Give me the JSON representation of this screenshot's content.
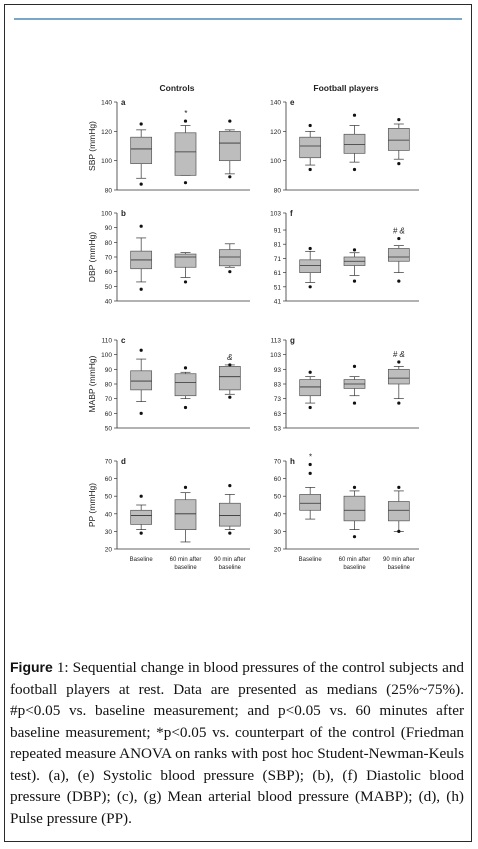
{
  "figure": {
    "column_titles": [
      "Controls",
      "Football players"
    ],
    "caption": {
      "label": "Figure",
      "number": "1:",
      "text": "Sequential change in blood pressures of the control subjects and football players at rest. Data are presented as medians (25%~75%). #p<0.05 vs. baseline measurement; and p<0.05 vs. 60 minutes after baseline measurement; *p<0.05 vs. counterpart of the control (Friedman repeated measure ANOVA on ranks with post hoc Student-Newman-Keuls test). (a), (e) Systolic blood pressure (SBP); (b), (f) Diastolic blood pressure (DBP); (c), (g) Mean arterial blood pressure (MABP); (d), (h) Pulse pressure (PP)."
    }
  },
  "chart_data": [
    {
      "type": "box",
      "panel": "a",
      "column": "Controls",
      "ylabel": "SBP (mmHg)",
      "ylim": [
        80,
        140
      ],
      "yticks": [
        80,
        100,
        120,
        140
      ],
      "categories": [
        "Baseline",
        "60 min after baseline",
        "90 min after baseline"
      ],
      "boxes": [
        {
          "whisker_low": 88,
          "q1": 98,
          "median": 108,
          "q3": 116,
          "whisker_high": 121,
          "outliers": [
            125,
            84
          ],
          "annotation": ""
        },
        {
          "whisker_low": 90,
          "q1": 90,
          "median": 106,
          "q3": 119,
          "whisker_high": 124,
          "outliers": [
            127,
            85
          ],
          "annotation": "*"
        },
        {
          "whisker_low": 91,
          "q1": 100,
          "median": 112,
          "q3": 120,
          "whisker_high": 121,
          "outliers": [
            127,
            89
          ],
          "annotation": ""
        }
      ]
    },
    {
      "type": "box",
      "panel": "b",
      "column": "Controls",
      "ylabel": "DBP (mmHg)",
      "ylim": [
        40,
        100
      ],
      "yticks": [
        40,
        50,
        60,
        70,
        80,
        90,
        100
      ],
      "categories": [
        "Baseline",
        "60 min after baseline",
        "90 min after baseline"
      ],
      "boxes": [
        {
          "whisker_low": 53,
          "q1": 62,
          "median": 68,
          "q3": 74,
          "whisker_high": 83,
          "outliers": [
            91,
            48
          ],
          "annotation": ""
        },
        {
          "whisker_low": 56,
          "q1": 63,
          "median": 70,
          "q3": 72,
          "whisker_high": 73,
          "outliers": [
            53
          ],
          "annotation": ""
        },
        {
          "whisker_low": 63,
          "q1": 64,
          "median": 70,
          "q3": 75,
          "whisker_high": 79,
          "outliers": [
            60
          ],
          "annotation": ""
        }
      ]
    },
    {
      "type": "box",
      "panel": "c",
      "column": "Controls",
      "ylabel": "MABP (mmHg)",
      "ylim": [
        50,
        110
      ],
      "yticks": [
        50,
        60,
        70,
        80,
        90,
        100,
        110
      ],
      "categories": [
        "Baseline",
        "60 min after baseline",
        "90 min after baseline"
      ],
      "boxes": [
        {
          "whisker_low": 68,
          "q1": 76,
          "median": 82,
          "q3": 89,
          "whisker_high": 97,
          "outliers": [
            103,
            60
          ],
          "annotation": ""
        },
        {
          "whisker_low": 70,
          "q1": 72,
          "median": 81,
          "q3": 87,
          "whisker_high": 88,
          "outliers": [
            91,
            64
          ],
          "annotation": ""
        },
        {
          "whisker_low": 73,
          "q1": 76,
          "median": 85,
          "q3": 92,
          "whisker_high": 93,
          "outliers": [
            93,
            71
          ],
          "annotation": "&"
        }
      ]
    },
    {
      "type": "box",
      "panel": "d",
      "column": "Controls",
      "ylabel": "PP (mmHg)",
      "ylim": [
        20,
        70
      ],
      "yticks": [
        20,
        30,
        40,
        50,
        60,
        70
      ],
      "categories": [
        "Baseline",
        "60 min after baseline",
        "90 min after baseline"
      ],
      "boxes": [
        {
          "whisker_low": 31,
          "q1": 34,
          "median": 39,
          "q3": 42,
          "whisker_high": 45,
          "outliers": [
            50,
            29
          ],
          "annotation": ""
        },
        {
          "whisker_low": 24,
          "q1": 31,
          "median": 40,
          "q3": 48,
          "whisker_high": 52,
          "outliers": [
            55
          ],
          "annotation": ""
        },
        {
          "whisker_low": 31,
          "q1": 33,
          "median": 39,
          "q3": 46,
          "whisker_high": 51,
          "outliers": [
            56,
            29
          ],
          "annotation": ""
        }
      ]
    },
    {
      "type": "box",
      "panel": "e",
      "column": "Football players",
      "ylabel": "",
      "ylim": [
        80,
        140
      ],
      "yticks": [
        80,
        100,
        120,
        140
      ],
      "categories": [
        "Baseline",
        "60 min after baseline",
        "90 min after baseline"
      ],
      "boxes": [
        {
          "whisker_low": 97,
          "q1": 102,
          "median": 110,
          "q3": 116,
          "whisker_high": 120,
          "outliers": [
            124,
            94
          ],
          "annotation": ""
        },
        {
          "whisker_low": 99,
          "q1": 105,
          "median": 111,
          "q3": 118,
          "whisker_high": 124,
          "outliers": [
            131,
            94
          ],
          "annotation": ""
        },
        {
          "whisker_low": 101,
          "q1": 107,
          "median": 114,
          "q3": 122,
          "whisker_high": 125,
          "outliers": [
            128,
            98
          ],
          "annotation": ""
        }
      ]
    },
    {
      "type": "box",
      "panel": "f",
      "column": "Football players",
      "ylabel": "",
      "ylim": [
        41,
        103
      ],
      "yticks": [
        41,
        51,
        61,
        71,
        81,
        91,
        103
      ],
      "categories": [
        "Baseline",
        "60 min after baseline",
        "90 min after baseline"
      ],
      "boxes": [
        {
          "whisker_low": 54,
          "q1": 61,
          "median": 66,
          "q3": 70,
          "whisker_high": 76,
          "outliers": [
            78,
            51
          ],
          "annotation": ""
        },
        {
          "whisker_low": 59,
          "q1": 66,
          "median": 69,
          "q3": 72,
          "whisker_high": 75,
          "outliers": [
            77,
            55
          ],
          "annotation": ""
        },
        {
          "whisker_low": 61,
          "q1": 69,
          "median": 72,
          "q3": 78,
          "whisker_high": 80,
          "outliers": [
            85,
            55
          ],
          "annotation": "# &"
        }
      ]
    },
    {
      "type": "box",
      "panel": "g",
      "column": "Football players",
      "ylabel": "",
      "ylim": [
        53,
        113
      ],
      "yticks": [
        53,
        63,
        73,
        83,
        93,
        103,
        113
      ],
      "categories": [
        "Baseline",
        "60 min after baseline",
        "90 min after baseline"
      ],
      "boxes": [
        {
          "whisker_low": 70,
          "q1": 75,
          "median": 81,
          "q3": 86,
          "whisker_high": 88,
          "outliers": [
            91,
            67
          ],
          "annotation": ""
        },
        {
          "whisker_low": 75,
          "q1": 80,
          "median": 83,
          "q3": 86,
          "whisker_high": 88,
          "outliers": [
            95,
            70
          ],
          "annotation": ""
        },
        {
          "whisker_low": 73,
          "q1": 83,
          "median": 87,
          "q3": 93,
          "whisker_high": 95,
          "outliers": [
            98,
            70
          ],
          "annotation": "# &"
        }
      ]
    },
    {
      "type": "box",
      "panel": "h",
      "column": "Football players",
      "ylabel": "",
      "ylim": [
        20,
        70
      ],
      "yticks": [
        20,
        30,
        40,
        50,
        60,
        70
      ],
      "categories": [
        "Baseline",
        "60 min after baseline",
        "90 min after baseline"
      ],
      "boxes": [
        {
          "whisker_low": 37,
          "q1": 42,
          "median": 46,
          "q3": 51,
          "whisker_high": 55,
          "outliers": [
            63,
            68
          ],
          "annotation": "*"
        },
        {
          "whisker_low": 31,
          "q1": 36,
          "median": 42,
          "q3": 50,
          "whisker_high": 53,
          "outliers": [
            55,
            27
          ],
          "annotation": ""
        },
        {
          "whisker_low": 30,
          "q1": 36,
          "median": 42,
          "q3": 47,
          "whisker_high": 53,
          "outliers": [
            55,
            30
          ],
          "annotation": ""
        }
      ]
    }
  ],
  "colors": {
    "box_fill": "#bdbdbd",
    "frame": "#2a2a2a",
    "accent_rule": "#7aa6c8"
  }
}
